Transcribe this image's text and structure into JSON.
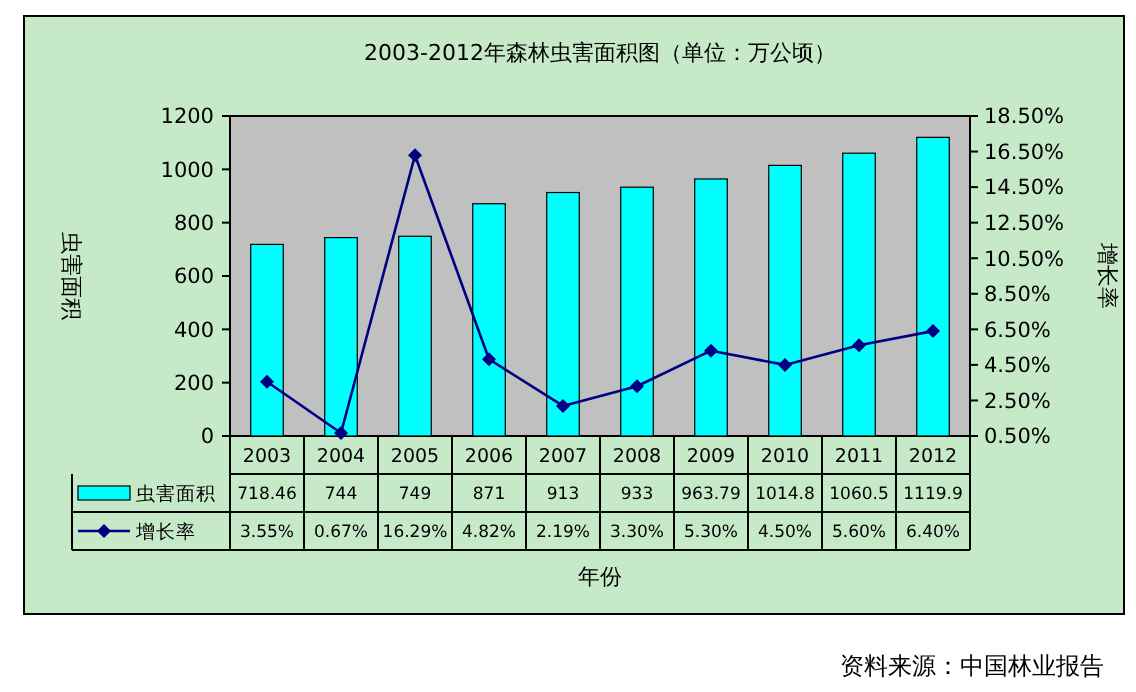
{
  "chart_data": {
    "type": "bar",
    "title": "2003-2012年森林虫害面积图（单位：万公顷）",
    "xlabel": "年份",
    "ylabel": "虫害面积",
    "y2label": "增长率",
    "categories": [
      "2003",
      "2004",
      "2005",
      "2006",
      "2007",
      "2008",
      "2009",
      "2010",
      "2011",
      "2012"
    ],
    "series": [
      {
        "name": "虫害面积",
        "color": "#00ffff",
        "values": [
          718.46,
          744,
          749,
          871,
          913,
          933,
          963.79,
          1014.8,
          1060.5,
          1119.9
        ],
        "value_labels": [
          "718.46",
          "744",
          "749",
          "871",
          "913",
          "933",
          "963.79",
          "1014.8",
          "1060.5",
          "1119.9"
        ]
      },
      {
        "name": "增长率",
        "type": "line",
        "axis": "y2",
        "color": "#000080",
        "marker": "diamond",
        "values": [
          3.55,
          0.67,
          16.29,
          4.82,
          2.19,
          3.3,
          5.3,
          4.5,
          5.6,
          6.4
        ],
        "value_labels": [
          "3.55%",
          "0.67%",
          "16.29%",
          "4.82%",
          "2.19%",
          "3.30%",
          "5.30%",
          "4.50%",
          "5.60%",
          "6.40%"
        ]
      }
    ],
    "ylim": [
      0,
      1200
    ],
    "yticks": [
      0,
      200,
      400,
      600,
      800,
      1000,
      1200
    ],
    "y2lim": [
      0.5,
      18.5
    ],
    "y2ticks": [
      {
        "value": 0.5,
        "label": "0.50%"
      },
      {
        "value": 2.5,
        "label": "2.50%"
      },
      {
        "value": 4.5,
        "label": "4.50%"
      },
      {
        "value": 6.5,
        "label": "6.50%"
      },
      {
        "value": 8.5,
        "label": "8.50%"
      },
      {
        "value": 10.5,
        "label": "10.50%"
      },
      {
        "value": 12.5,
        "label": "12.50%"
      },
      {
        "value": 14.5,
        "label": "14.50%"
      },
      {
        "value": 16.5,
        "label": "16.50%"
      },
      {
        "value": 18.5,
        "label": "18.50%"
      }
    ],
    "legend": "bottom left",
    "grid": false,
    "annotations": [
      "资料来源：中国林业报告"
    ]
  }
}
